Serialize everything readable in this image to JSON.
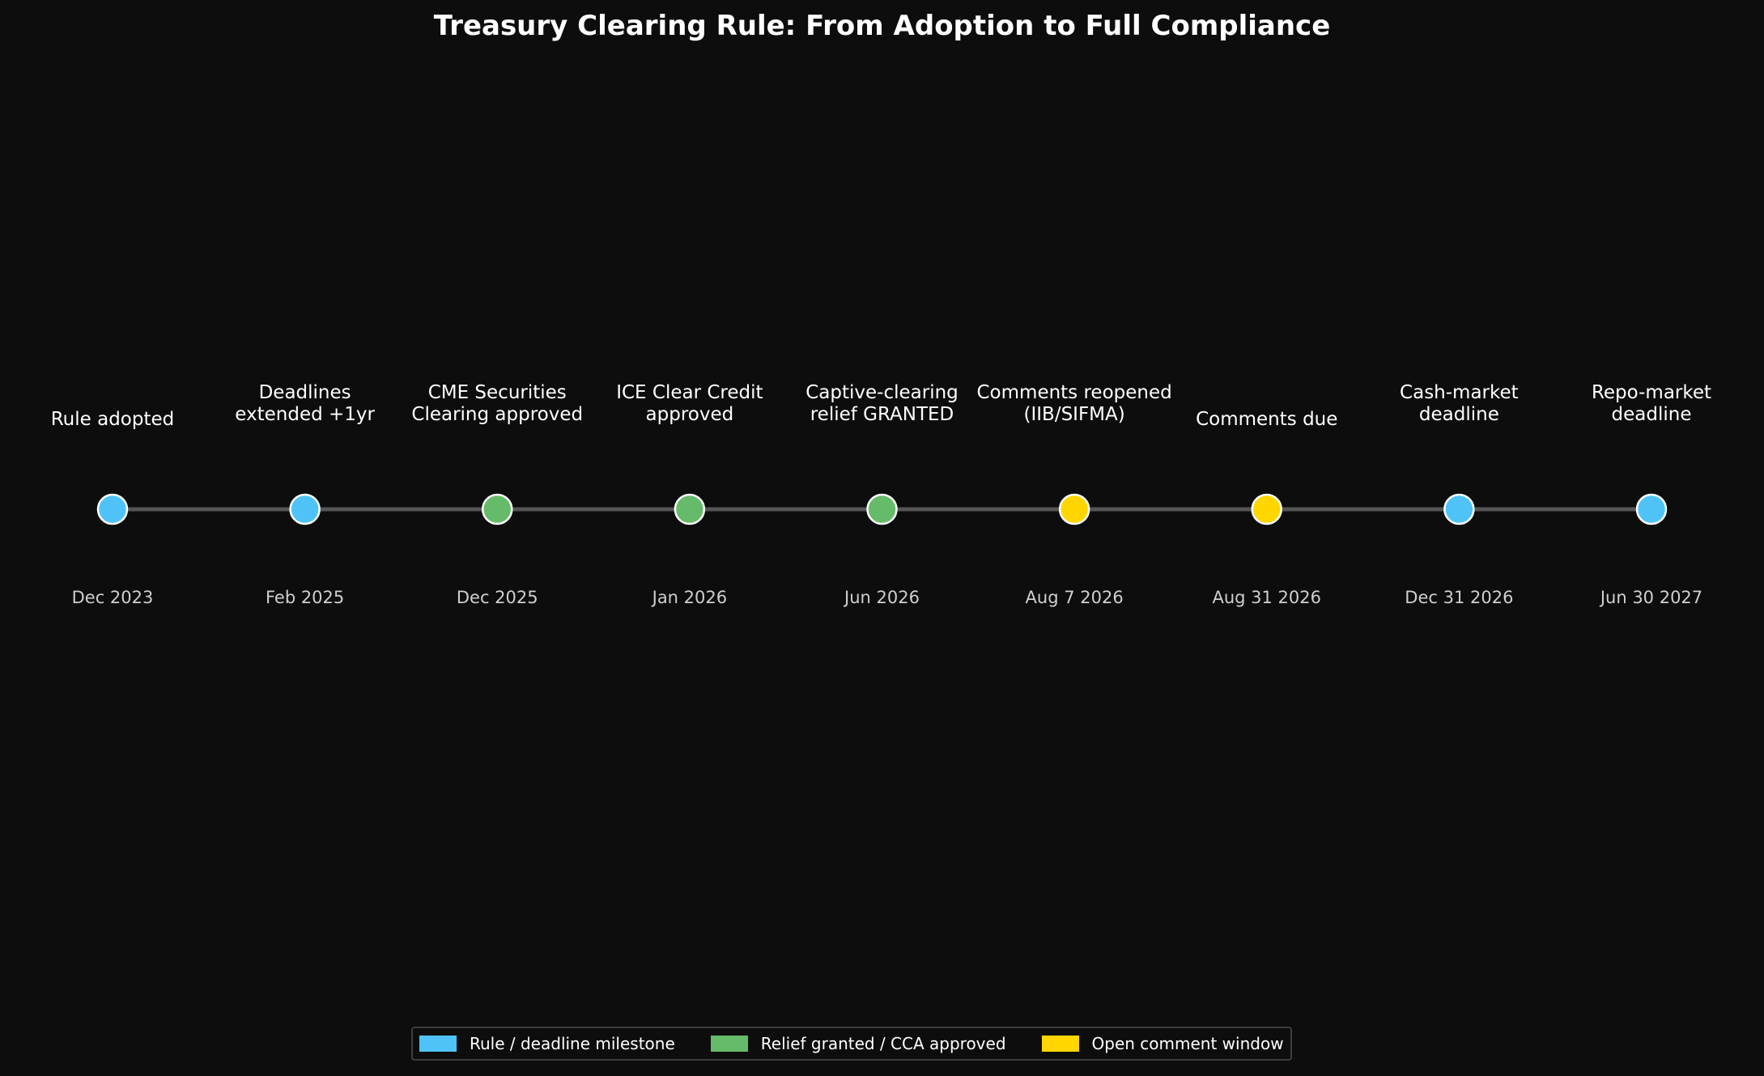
{
  "chart_data": {
    "type": "timeline",
    "title": "Treasury Clearing Rule: From Adoption to Full Compliance",
    "events": [
      {
        "label": [
          "Rule adopted"
        ],
        "date": "Dec 2023",
        "category": "milestone"
      },
      {
        "label": [
          "Deadlines",
          "extended +1yr"
        ],
        "date": "Feb 2025",
        "category": "milestone"
      },
      {
        "label": [
          "CME Securities",
          "Clearing approved"
        ],
        "date": "Dec 2025",
        "category": "relief"
      },
      {
        "label": [
          "ICE Clear Credit",
          "approved"
        ],
        "date": "Jan 2026",
        "category": "relief"
      },
      {
        "label": [
          "Captive-clearing",
          "relief GRANTED"
        ],
        "date": "Jun 2026",
        "category": "relief"
      },
      {
        "label": [
          "Comments reopened",
          "(IIB/SIFMA)"
        ],
        "date": "Aug 7 2026",
        "category": "comment"
      },
      {
        "label": [
          "Comments due"
        ],
        "date": "Aug 31 2026",
        "category": "comment"
      },
      {
        "label": [
          "Cash-market",
          "deadline"
        ],
        "date": "Dec 31 2026",
        "category": "milestone"
      },
      {
        "label": [
          "Repo-market",
          "deadline"
        ],
        "date": "Jun 30 2027",
        "category": "milestone"
      }
    ],
    "categories": {
      "milestone": {
        "name": "Rule / deadline milestone",
        "color": "#4fc3f7"
      },
      "relief": {
        "name": "Relief granted / CCA approved",
        "color": "#66bb6a"
      },
      "comment": {
        "name": "Open comment window",
        "color": "#ffd600"
      }
    },
    "legend_order": [
      "milestone",
      "relief",
      "comment"
    ],
    "legend_position": "bottom-center"
  },
  "colors": {
    "background": "#0d0d0d",
    "line": "#555555",
    "marker_edge": "#ffffff"
  }
}
